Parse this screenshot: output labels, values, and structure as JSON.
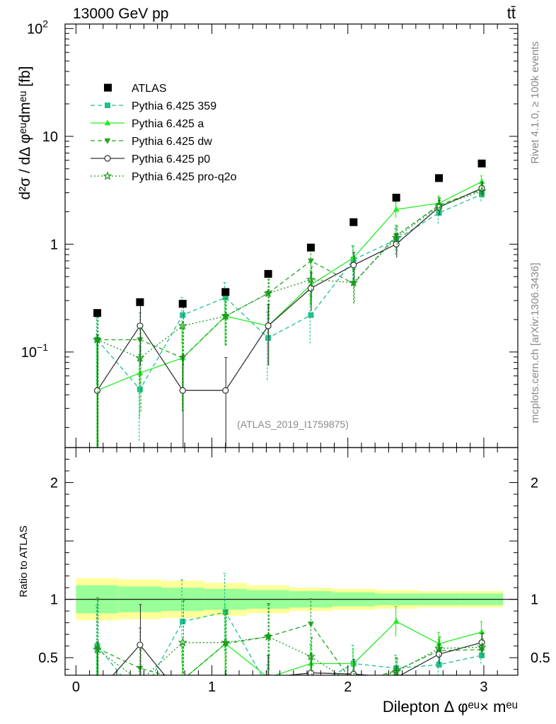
{
  "header": {
    "energy_label": "13000 GeV pp",
    "process_label": "tt̄"
  },
  "side_labels": {
    "rivet": "Rivet 4.1.0, ≥ 100k events",
    "mcplots": "mcplots.cern.ch [arXiv:1306.3436]"
  },
  "analysis_tag": "(ATLAS_2019_I1759875)",
  "colors": {
    "atlas": "#000000",
    "p359": "#1fbf8f",
    "pa": "#22ee22",
    "pdw": "#1fa61f",
    "pp0": "#333333",
    "pq2o": "#1a9a1a",
    "band_yellow": "#ffff99",
    "band_green": "#99ff99"
  },
  "chart_data": {
    "type": "line",
    "title": "",
    "main_panel": {
      "ylabel": "d²σ / dΔ φᵉᵘdmᵉᵘ [fb]",
      "yscale": "log",
      "ylim": [
        0.013,
        110
      ],
      "yticks": [
        {
          "value": 0.1,
          "base": "10",
          "exp": "−1"
        },
        {
          "value": 1,
          "base": "1",
          "exp": ""
        },
        {
          "value": 10,
          "base": "10",
          "exp": ""
        },
        {
          "value": 100,
          "base": "10",
          "exp": "2"
        }
      ]
    },
    "ratio_panel": {
      "ylabel": "Ratio to ATLAS",
      "ylim": [
        0.35,
        2.3
      ],
      "yticks": [
        "0.5",
        "1",
        "2"
      ],
      "yvalues": [
        0.5,
        1,
        2
      ]
    },
    "xlabel": "Dilepton Δ φᵉᵘ× mᵉᵘ",
    "xlim": [
      -0.08,
      3.25
    ],
    "xticks": [
      "0",
      "1",
      "2",
      "3"
    ],
    "xvalues": [
      0,
      1,
      2,
      3
    ],
    "bin_edges": [
      0,
      0.314,
      0.628,
      0.942,
      1.257,
      1.571,
      1.885,
      2.199,
      2.513,
      2.827,
      3.142
    ],
    "x": [
      0.157,
      0.471,
      0.785,
      1.1,
      1.414,
      1.728,
      2.042,
      2.356,
      2.67,
      2.985
    ],
    "atlas": {
      "name": "ATLAS",
      "values": [
        0.23,
        0.29,
        0.28,
        0.36,
        0.53,
        0.93,
        1.6,
        2.7,
        4.1,
        5.6
      ],
      "band_inner": [
        0.12,
        0.11,
        0.1,
        0.09,
        0.08,
        0.07,
        0.06,
        0.05,
        0.05,
        0.05
      ],
      "band_outer": [
        0.18,
        0.17,
        0.16,
        0.14,
        0.12,
        0.1,
        0.09,
        0.08,
        0.07,
        0.07
      ]
    },
    "series": [
      {
        "name": "Pythia 6.425 359",
        "key": "p359",
        "marker": "square",
        "dash": "6,4",
        "values": [
          0.13,
          0.045,
          0.22,
          0.32,
          0.135,
          0.22,
          0.72,
          1.1,
          1.95,
          2.9
        ],
        "err_lo": [
          0.08,
          0.03,
          0.1,
          0.12,
          0.08,
          0.1,
          0.25,
          0.3,
          0.4,
          0.4
        ],
        "err_hi": [
          0.08,
          0.05,
          0.1,
          0.12,
          0.1,
          0.12,
          0.25,
          0.3,
          0.4,
          0.4
        ],
        "ratio": [
          0.6,
          0.15,
          0.81,
          0.89,
          0.25,
          0.24,
          0.45,
          0.41,
          0.44,
          0.52
        ]
      },
      {
        "name": "Pythia 6.425 a",
        "key": "pa",
        "marker": "triangle-up",
        "dash": "",
        "values": [
          0.044,
          0.064,
          0.088,
          0.215,
          0.175,
          0.42,
          0.75,
          2.1,
          2.4,
          3.8
        ],
        "err_lo": [
          0.044,
          0.04,
          0.06,
          0.1,
          0.1,
          0.15,
          0.2,
          0.35,
          0.4,
          0.5
        ],
        "err_hi": [
          0.1,
          0.05,
          0.08,
          0.12,
          0.1,
          0.15,
          0.2,
          0.35,
          0.4,
          0.5
        ],
        "ratio": [
          0.2,
          0.21,
          0.31,
          0.62,
          0.33,
          0.45,
          0.45,
          0.81,
          0.62,
          0.72
        ]
      },
      {
        "name": "Pythia 6.425 dw",
        "key": "pdw",
        "marker": "triangle-down",
        "dash": "6,4",
        "values": [
          0.13,
          0.13,
          0.088,
          0.215,
          0.35,
          0.7,
          0.43,
          1.2,
          2.3,
          3.2
        ],
        "err_lo": [
          0.13,
          0.08,
          0.06,
          0.1,
          0.15,
          0.2,
          0.15,
          0.3,
          0.4,
          0.4
        ],
        "err_hi": [
          0.1,
          0.1,
          0.08,
          0.1,
          0.15,
          0.2,
          0.15,
          0.3,
          0.4,
          0.4
        ],
        "ratio": [
          0.58,
          0.41,
          0.31,
          0.62,
          0.68,
          0.79,
          0.28,
          0.39,
          0.56,
          0.57
        ]
      },
      {
        "name": "Pythia 6.425 p0",
        "key": "pp0",
        "marker": "circle-open",
        "dash": "",
        "values": [
          0.044,
          0.175,
          0.044,
          0.044,
          0.175,
          0.39,
          0.64,
          1.0,
          2.2,
          3.3
        ],
        "err_lo": [
          0.044,
          0.1,
          0.044,
          0.044,
          0.1,
          0.15,
          0.2,
          0.25,
          0.35,
          0.45
        ],
        "err_hi": [
          0.1,
          0.1,
          0.05,
          0.045,
          0.1,
          0.15,
          0.2,
          0.25,
          0.35,
          0.45
        ],
        "ratio": [
          0.2,
          0.61,
          0.16,
          0.12,
          0.33,
          0.37,
          0.36,
          0.33,
          0.53,
          0.63
        ]
      },
      {
        "name": "Pythia 6.425 pro-q2o",
        "key": "pq2o",
        "marker": "star-open",
        "dash": "2,3",
        "values": [
          0.13,
          0.088,
          0.175,
          0.215,
          0.35,
          0.47,
          0.44,
          1.15,
          2.25,
          3.1
        ],
        "err_lo": [
          0.13,
          0.06,
          0.1,
          0.1,
          0.15,
          0.15,
          0.15,
          0.3,
          0.4,
          0.4
        ],
        "err_hi": [
          0.1,
          0.08,
          0.1,
          0.1,
          0.15,
          0.15,
          0.15,
          0.3,
          0.4,
          0.4
        ],
        "ratio": [
          0.57,
          0.3,
          0.63,
          0.63,
          0.68,
          0.51,
          0.27,
          0.38,
          0.58,
          0.59
        ]
      }
    ],
    "legend": {
      "placement": "top-left"
    }
  }
}
